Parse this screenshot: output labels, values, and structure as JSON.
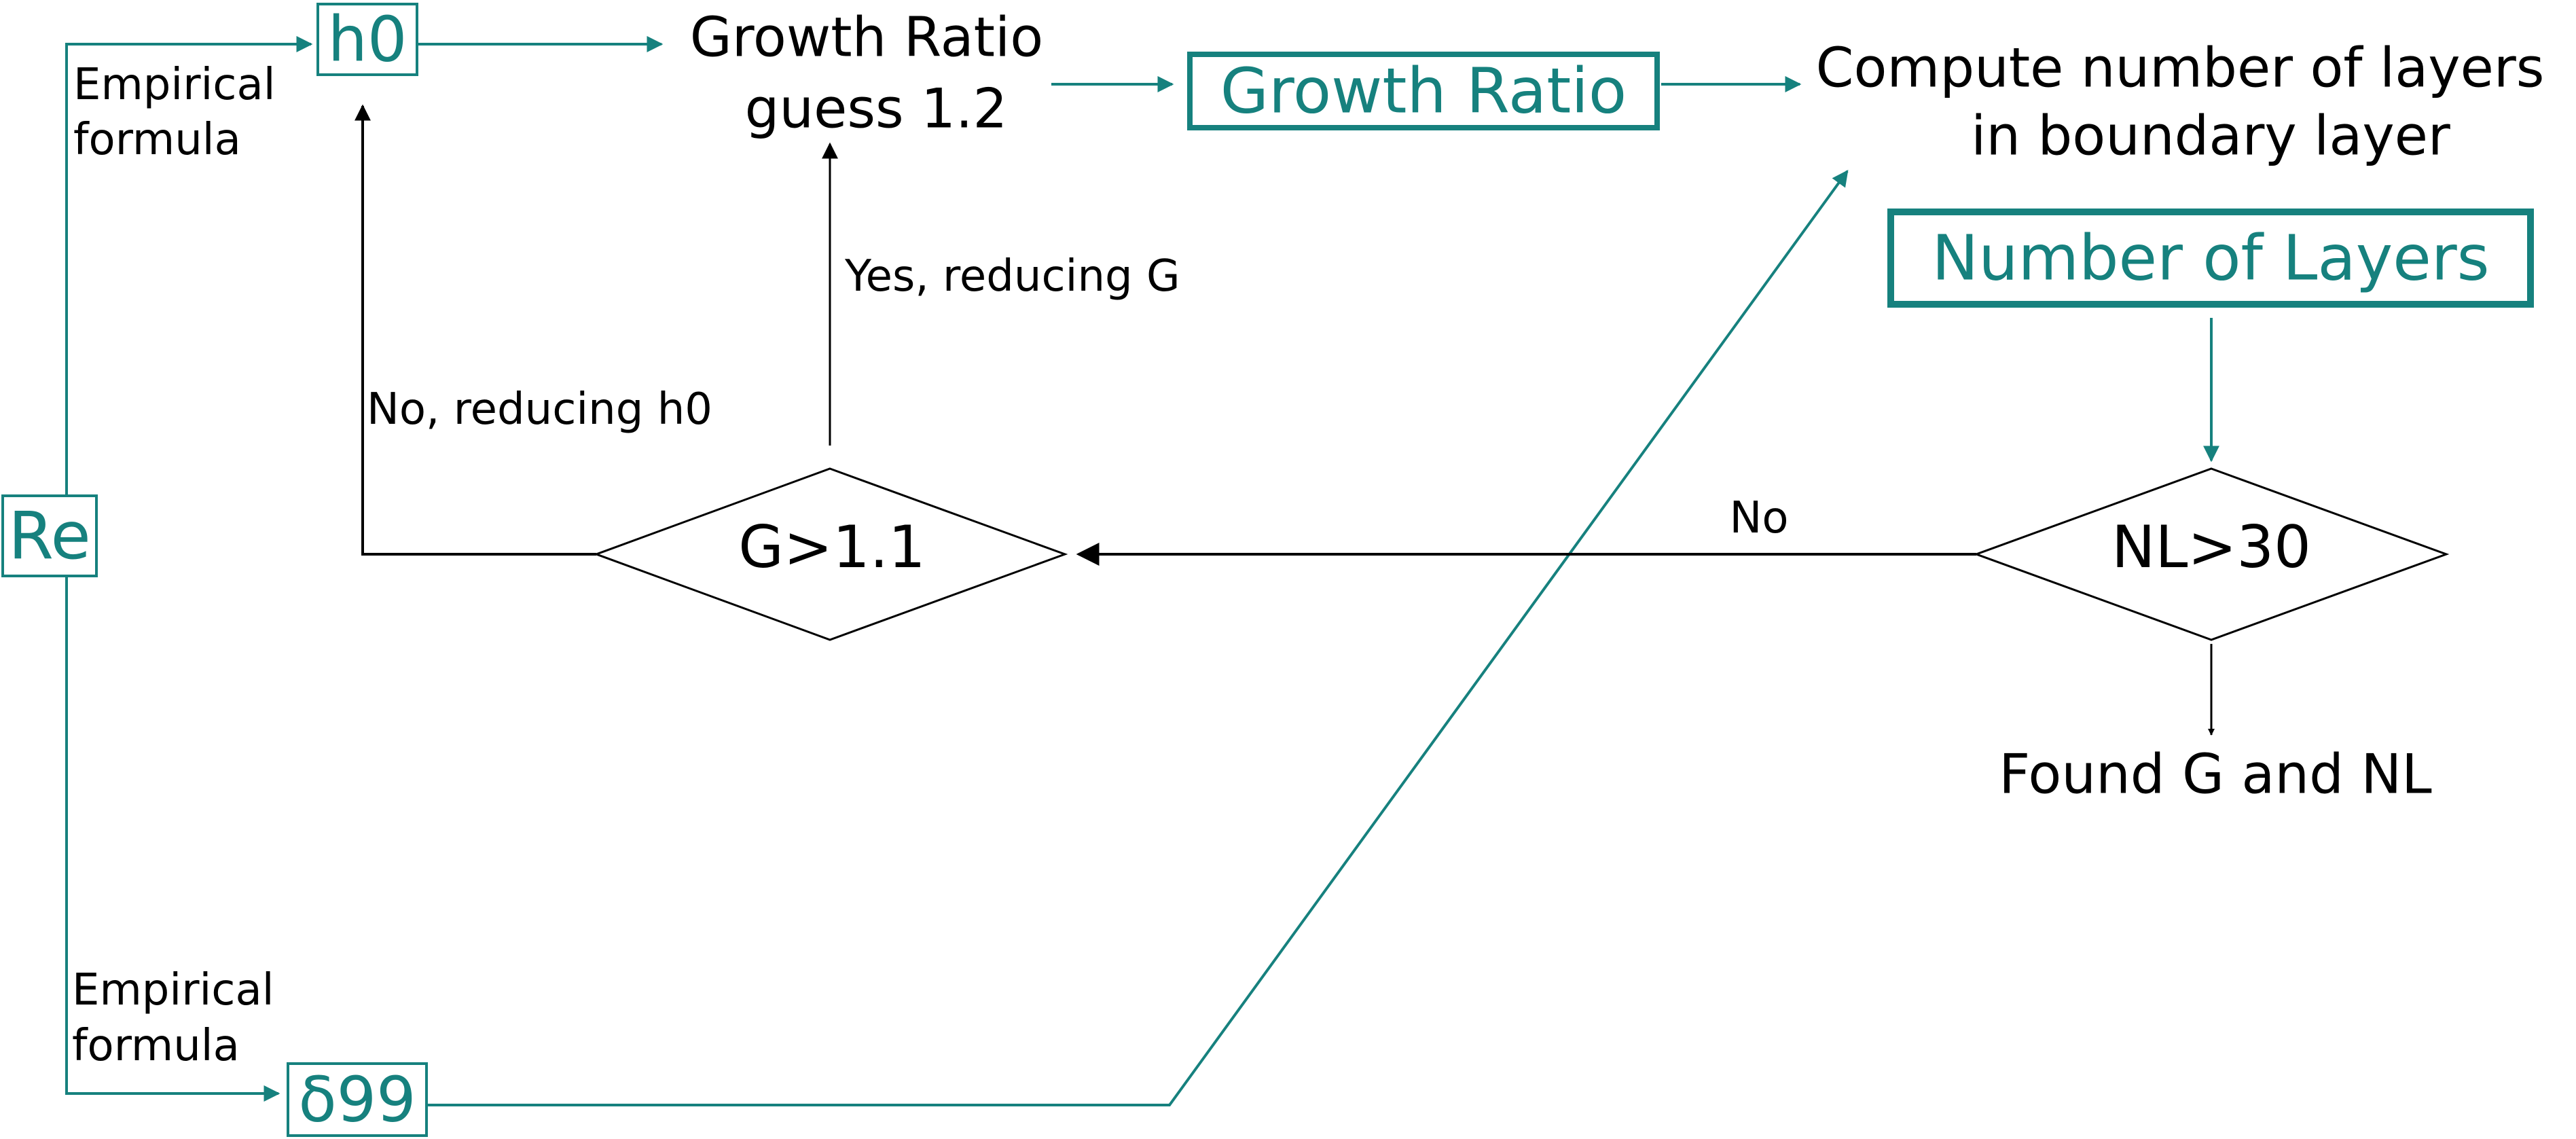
{
  "colors": {
    "accent": "#16817e",
    "text": "#000000",
    "background": "#ffffff"
  },
  "nodes": {
    "re": "Re",
    "h0": "h0",
    "delta99": "δ99",
    "growth_guess_line1": "Growth Ratio",
    "growth_guess_line2": "guess 1.2",
    "growth_ratio": "Growth Ratio",
    "compute_line1": "Compute number of layers",
    "compute_line2": "in boundary layer",
    "number_of_layers": "Number of Layers",
    "decision_nl": "NL>30",
    "decision_g": "G>1.1",
    "found": "Found G and NL"
  },
  "edge_labels": {
    "empirical_top_line1": "Empirical",
    "empirical_top_line2": "formula",
    "empirical_bottom_line1": "Empirical",
    "empirical_bottom_line2": "formula",
    "yes_reducing_g": "Yes, reducing G",
    "no_reducing_h0": "No, reducing h0",
    "no": "No"
  }
}
